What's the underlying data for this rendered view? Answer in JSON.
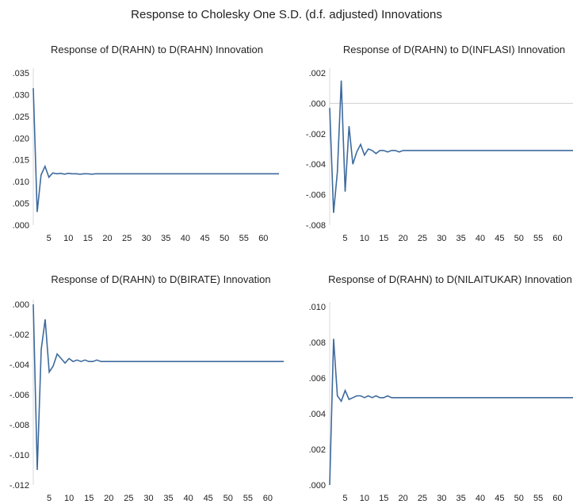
{
  "title": "Response to Cholesky One S.D. (d.f. adjusted) Innovations",
  "chart_data": [
    {
      "type": "line",
      "title": "Response of D(RAHN) to D(RAHN) Innovation",
      "xticks": [
        5,
        10,
        15,
        20,
        25,
        30,
        35,
        40,
        45,
        50,
        55,
        60
      ],
      "yticks": [
        ".000",
        ".005",
        ".010",
        ".015",
        ".020",
        ".025",
        ".030",
        ".035"
      ],
      "ylim": [
        0,
        0.035
      ],
      "xlim": [
        1,
        64
      ],
      "x": [
        1,
        2,
        3,
        4,
        5,
        6,
        7,
        8,
        9,
        10,
        11,
        12,
        13,
        14,
        15,
        16,
        17,
        18,
        19,
        20,
        25,
        30,
        35,
        40,
        45,
        50,
        55,
        60,
        64
      ],
      "values": [
        0.0315,
        0.003,
        0.0115,
        0.0135,
        0.011,
        0.012,
        0.0118,
        0.0119,
        0.0117,
        0.0119,
        0.0118,
        0.0118,
        0.0117,
        0.0118,
        0.0118,
        0.0117,
        0.0118,
        0.0118,
        0.0118,
        0.0118,
        0.0118,
        0.0118,
        0.0118,
        0.0118,
        0.0118,
        0.0118,
        0.0118,
        0.0118,
        0.0118
      ]
    },
    {
      "type": "line",
      "title": "Response of D(RAHN) to D(INFLASI) Innovation",
      "xticks": [
        5,
        10,
        15,
        20,
        25,
        30,
        35,
        40,
        45,
        50,
        55,
        60
      ],
      "yticks": [
        "-.008",
        "-.006",
        "-.004",
        "-.002",
        ".000",
        ".002"
      ],
      "ylim": [
        -0.008,
        0.002
      ],
      "xlim": [
        1,
        64
      ],
      "x": [
        1,
        2,
        3,
        4,
        5,
        6,
        7,
        8,
        9,
        10,
        11,
        12,
        13,
        14,
        15,
        16,
        17,
        18,
        19,
        20,
        22,
        25,
        30,
        35,
        40,
        45,
        50,
        55,
        60,
        64
      ],
      "values": [
        -0.0003,
        -0.0072,
        -0.0045,
        0.0015,
        -0.0058,
        -0.0015,
        -0.004,
        -0.0032,
        -0.0027,
        -0.0034,
        -0.003,
        -0.0031,
        -0.0033,
        -0.0031,
        -0.0031,
        -0.0032,
        -0.0031,
        -0.0031,
        -0.0032,
        -0.0031,
        -0.0031,
        -0.0031,
        -0.0031,
        -0.0031,
        -0.0031,
        -0.0031,
        -0.0031,
        -0.0031,
        -0.0031,
        -0.0031
      ]
    },
    {
      "type": "line",
      "title": "Response of D(RAHN) to D(BIRATE) Innovation",
      "xticks": [
        5,
        10,
        15,
        20,
        25,
        30,
        35,
        40,
        45,
        50,
        55,
        60
      ],
      "yticks": [
        "-.012",
        "-.010",
        "-.008",
        "-.006",
        "-.004",
        "-.002",
        ".000"
      ],
      "ylim": [
        -0.012,
        0
      ],
      "xlim": [
        1,
        64
      ],
      "x": [
        1,
        2,
        3,
        4,
        5,
        6,
        7,
        8,
        9,
        10,
        11,
        12,
        13,
        14,
        15,
        16,
        17,
        18,
        19,
        20,
        25,
        30,
        35,
        40,
        45,
        50,
        55,
        60,
        64
      ],
      "values": [
        0,
        -0.011,
        -0.003,
        -0.001,
        -0.0045,
        -0.0041,
        -0.0033,
        -0.0036,
        -0.0039,
        -0.0036,
        -0.0038,
        -0.0037,
        -0.0038,
        -0.0037,
        -0.0038,
        -0.0038,
        -0.0037,
        -0.0038,
        -0.0038,
        -0.0038,
        -0.0038,
        -0.0038,
        -0.0038,
        -0.0038,
        -0.0038,
        -0.0038,
        -0.0038,
        -0.0038,
        -0.0038
      ]
    },
    {
      "type": "line",
      "title": "Response of D(RAHN) to D(NILAITUKAR) Innovation",
      "xticks": [
        5,
        10,
        15,
        20,
        25,
        30,
        35,
        40,
        45,
        50,
        55,
        60
      ],
      "yticks": [
        ".000",
        ".002",
        ".004",
        ".006",
        ".008",
        ".010"
      ],
      "ylim": [
        0,
        0.01
      ],
      "xlim": [
        1,
        64
      ],
      "x": [
        1,
        2,
        3,
        4,
        5,
        6,
        7,
        8,
        9,
        10,
        11,
        12,
        13,
        14,
        15,
        16,
        17,
        18,
        19,
        20,
        25,
        30,
        35,
        40,
        45,
        50,
        55,
        60,
        64
      ],
      "values": [
        0,
        0.0082,
        0.005,
        0.0047,
        0.0053,
        0.0048,
        0.0049,
        0.005,
        0.005,
        0.0049,
        0.005,
        0.0049,
        0.005,
        0.0049,
        0.0049,
        0.005,
        0.0049,
        0.0049,
        0.0049,
        0.0049,
        0.0049,
        0.0049,
        0.0049,
        0.0049,
        0.0049,
        0.0049,
        0.0049,
        0.0049,
        0.0049
      ]
    }
  ]
}
